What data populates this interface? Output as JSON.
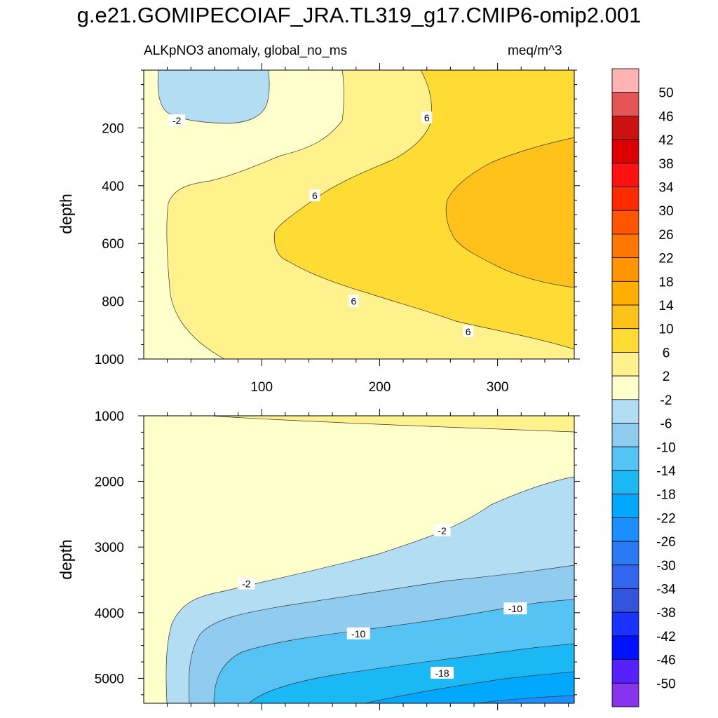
{
  "figure": {
    "title": "g.e21.GOMIPECOIAF_JRA.TL319_g17.CMIP6-omip2.001",
    "left_subtitle": "ALKpNO3 anomaly, global_no_ms",
    "right_subtitle": "meq/m^3"
  },
  "chart_data": [
    {
      "type": "heatmap",
      "name": "upper-panel",
      "xlabel": "",
      "ylabel": "depth",
      "xlim": [
        0,
        365
      ],
      "ylim": [
        1000,
        0
      ],
      "x_ticks": [
        "100",
        "200",
        "300"
      ],
      "x_tick_values": [
        100,
        200,
        300
      ],
      "y_ticks": [
        "200",
        "400",
        "600",
        "800",
        "1000"
      ],
      "y_tick_values": [
        200,
        400,
        600,
        800,
        1000
      ],
      "contour_labels": [
        {
          "text": "-2",
          "x": 28,
          "depth": 175
        },
        {
          "text": "6",
          "x": 240,
          "depth": 165
        },
        {
          "text": "6",
          "x": 145,
          "depth": 435
        },
        {
          "text": "6",
          "x": 178,
          "depth": 800
        },
        {
          "text": "6",
          "x": 275,
          "depth": 905
        }
      ]
    },
    {
      "type": "heatmap",
      "name": "lower-panel",
      "xlabel": "",
      "ylabel": "depth",
      "xlim": [
        0,
        365
      ],
      "ylim": [
        5380,
        1000
      ],
      "x_ticks": [],
      "x_tick_values": [
        100,
        200,
        300
      ],
      "y_ticks": [
        "1000",
        "2000",
        "3000",
        "4000",
        "5000"
      ],
      "y_tick_values": [
        1000,
        2000,
        3000,
        4000,
        5000
      ],
      "contour_labels": [
        {
          "text": "-2",
          "x": 253,
          "depth": 2750
        },
        {
          "text": "-2",
          "x": 87,
          "depth": 3560
        },
        {
          "text": "-10",
          "x": 315,
          "depth": 3940
        },
        {
          "text": "-10",
          "x": 182,
          "depth": 4320
        },
        {
          "text": "-18",
          "x": 253,
          "depth": 4920
        }
      ]
    }
  ],
  "colorbar": {
    "labels": [
      "50",
      "46",
      "42",
      "38",
      "34",
      "30",
      "26",
      "22",
      "18",
      "14",
      "10",
      "6",
      "2",
      "-2",
      "-6",
      "-10",
      "-14",
      "-18",
      "-22",
      "-26",
      "-30",
      "-34",
      "-38",
      "-42",
      "-46",
      "-50"
    ],
    "colors": [
      "#FFB3B3",
      "#E55555",
      "#CC1111",
      "#DD0000",
      "#FF1111",
      "#FF2A00",
      "#FF5500",
      "#FF7700",
      "#FF9500",
      "#FFB000",
      "#FFC21A",
      "#FFDC33",
      "#FFF28C",
      "#FFFFCC",
      "#B3DDF2",
      "#90CCF0",
      "#55C4F5",
      "#1AB9F5",
      "#00A8FF",
      "#1A8FFF",
      "#2A7AF5",
      "#3366EE",
      "#3355DD",
      "#1A33FF",
      "#0011FF",
      "#5522FF",
      "#8833EE"
    ]
  }
}
